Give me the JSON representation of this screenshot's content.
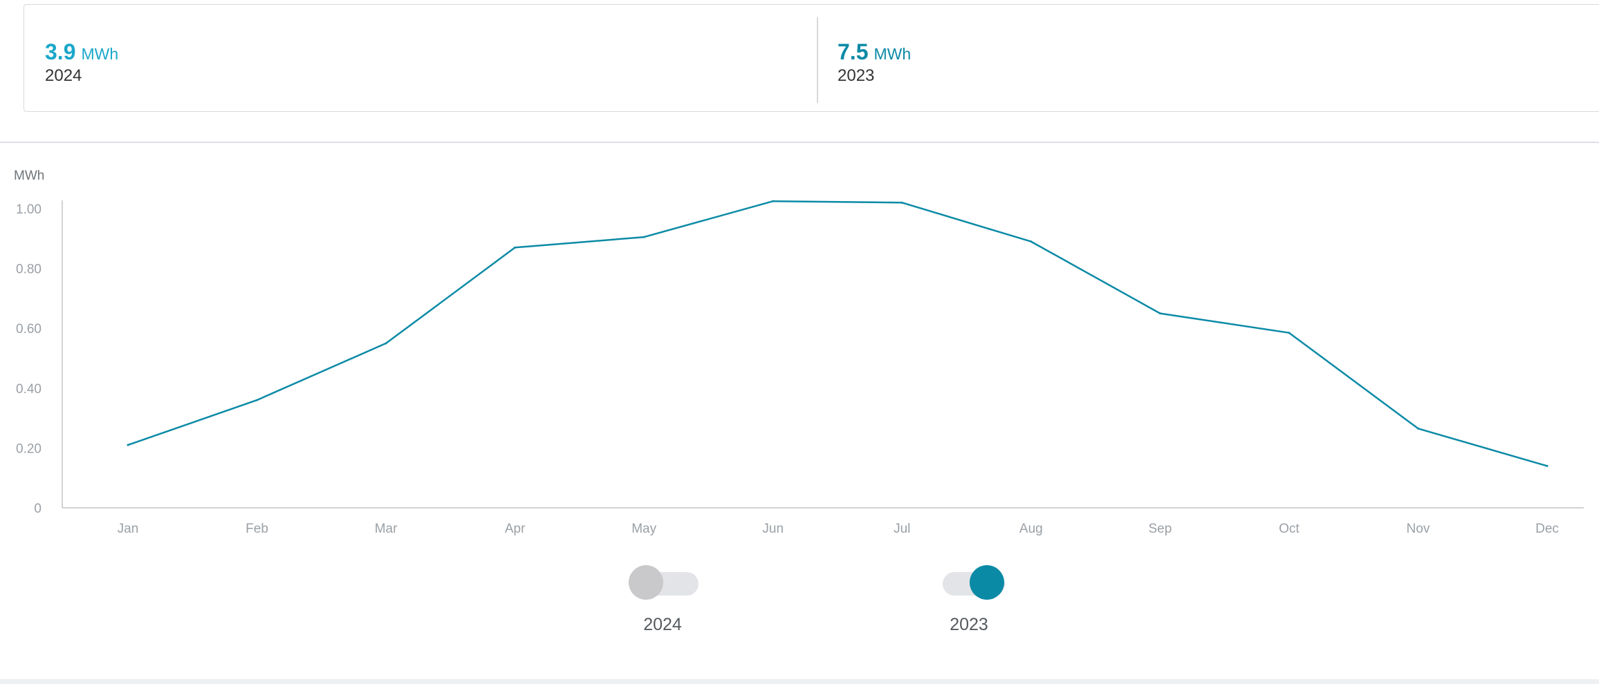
{
  "summary": {
    "items": [
      {
        "value": "3.9",
        "unit": "MWh",
        "label": "2024",
        "color": "#1aa7c9"
      },
      {
        "value": "7.5",
        "unit": "MWh",
        "label": "2023",
        "color": "#0b8aa6"
      }
    ]
  },
  "legend": {
    "items": [
      {
        "label": "2024",
        "enabled": false,
        "knob_color": "#c9c9cb"
      },
      {
        "label": "2023",
        "enabled": true,
        "knob_color": "#0b8aa6"
      }
    ]
  },
  "chart_data": {
    "type": "line",
    "ylabel": "MWh",
    "categories": [
      "Jan",
      "Feb",
      "Mar",
      "Apr",
      "May",
      "Jun",
      "Jul",
      "Aug",
      "Sep",
      "Oct",
      "Nov",
      "Dec"
    ],
    "ylim": [
      0,
      1.0
    ],
    "yticks": [
      "0",
      "0.20",
      "0.40",
      "0.60",
      "0.80",
      "1.00"
    ],
    "ytick_values": [
      0,
      0.2,
      0.4,
      0.6,
      0.8,
      1.0
    ],
    "grid": false,
    "series": [
      {
        "name": "2023",
        "color": "#0b8aa6",
        "values": [
          0.21,
          0.36,
          0.55,
          0.87,
          0.905,
          1.025,
          1.02,
          0.89,
          0.65,
          0.585,
          0.265,
          0.14
        ]
      }
    ]
  }
}
